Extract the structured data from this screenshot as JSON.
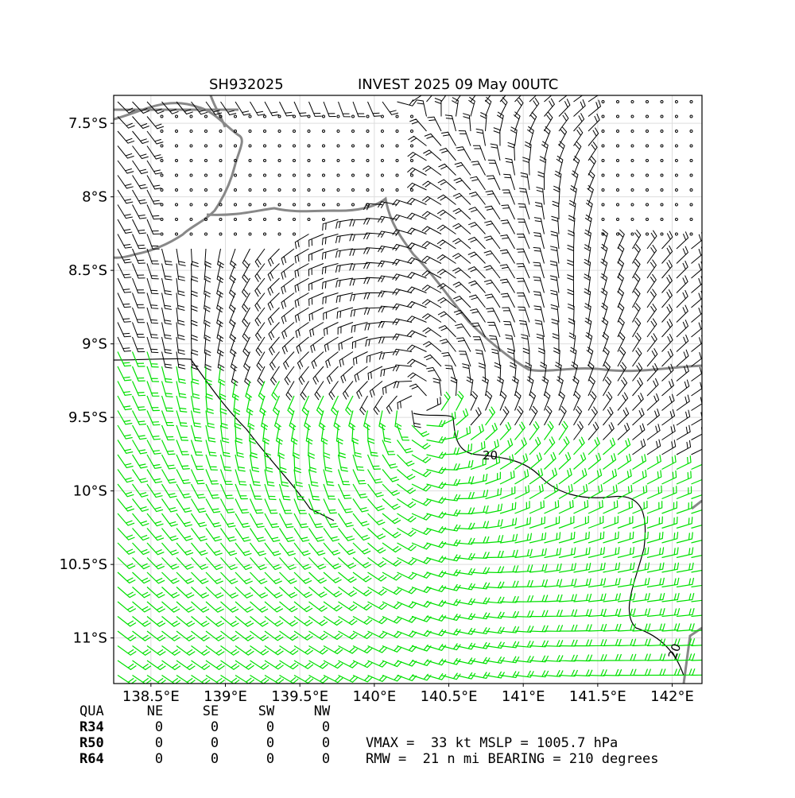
{
  "title_left": "SH932025",
  "title_right": "INVEST 2025 09 May 00UTC",
  "map": {
    "xlim": [
      138.25,
      142.2
    ],
    "ylim": [
      -11.31,
      -7.31
    ],
    "xticks": [
      {
        "value": 138.5,
        "label": "138.5°E"
      },
      {
        "value": 139,
        "label": "139°E"
      },
      {
        "value": 139.5,
        "label": "139.5°E"
      },
      {
        "value": 140,
        "label": "140°E"
      },
      {
        "value": 140.5,
        "label": "140.5°E"
      },
      {
        "value": 141,
        "label": "141°E"
      },
      {
        "value": 141.5,
        "label": "141.5°E"
      },
      {
        "value": 142,
        "label": "142°E"
      }
    ],
    "yticks": [
      {
        "value": -7.5,
        "label": "7.5°S"
      },
      {
        "value": -8,
        "label": "8°S"
      },
      {
        "value": -8.5,
        "label": "8.5°S"
      },
      {
        "value": -9,
        "label": "9°S"
      },
      {
        "value": -9.5,
        "label": "9.5°S"
      },
      {
        "value": -10,
        "label": "10°S"
      },
      {
        "value": -10.5,
        "label": "10.5°S"
      },
      {
        "value": -11,
        "label": "11°S"
      }
    ],
    "contour_labels": [
      "20",
      "20"
    ]
  },
  "table": {
    "header": [
      "QUA",
      "NE",
      "SE",
      "SW",
      "NW"
    ],
    "rows": [
      [
        "R34",
        "0",
        "0",
        "0",
        "0"
      ],
      [
        "R50",
        "0",
        "0",
        "0",
        "0"
      ],
      [
        "R64",
        "0",
        "0",
        "0",
        "0"
      ]
    ]
  },
  "stats": [
    "VMAX =  33 kt MSLP = 1005.7 hPa",
    "RMW =  21 n mi BEARING = 210 degrees"
  ]
}
